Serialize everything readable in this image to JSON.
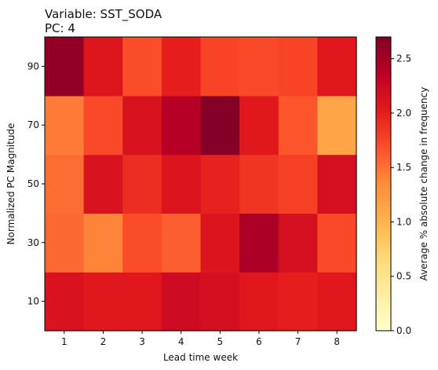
{
  "chart_data": {
    "type": "heatmap",
    "title_line1": "Variable: SST_SODA",
    "title_line2": "PC: 4",
    "xlabel": "Lead time week",
    "ylabel": "Normalized PC Magnitude",
    "colorbar_label": "Average % absolute change in frequency",
    "x_categories": [
      "1",
      "2",
      "3",
      "4",
      "5",
      "6",
      "7",
      "8"
    ],
    "y_categories": [
      "10",
      "30",
      "50",
      "70",
      "90"
    ],
    "values": [
      [
        2.12,
        2.05,
        2.05,
        2.22,
        2.16,
        2.05,
        2.0,
        2.05
      ],
      [
        1.55,
        1.4,
        1.7,
        1.6,
        2.1,
        2.45,
        2.15,
        1.72
      ],
      [
        1.52,
        2.12,
        1.9,
        2.1,
        1.98,
        1.85,
        1.78,
        2.15
      ],
      [
        1.45,
        1.72,
        2.12,
        2.4,
        2.68,
        2.05,
        1.65,
        1.12
      ],
      [
        2.6,
        2.08,
        1.7,
        2.0,
        1.75,
        1.72,
        1.75,
        2.05
      ]
    ],
    "colorbar": {
      "min": 0.0,
      "max": 2.7,
      "ticks": [
        "0.0",
        "0.5",
        "1.0",
        "1.5",
        "2.0",
        "2.5"
      ],
      "colormap": "YlOrRd"
    },
    "grid": false
  }
}
